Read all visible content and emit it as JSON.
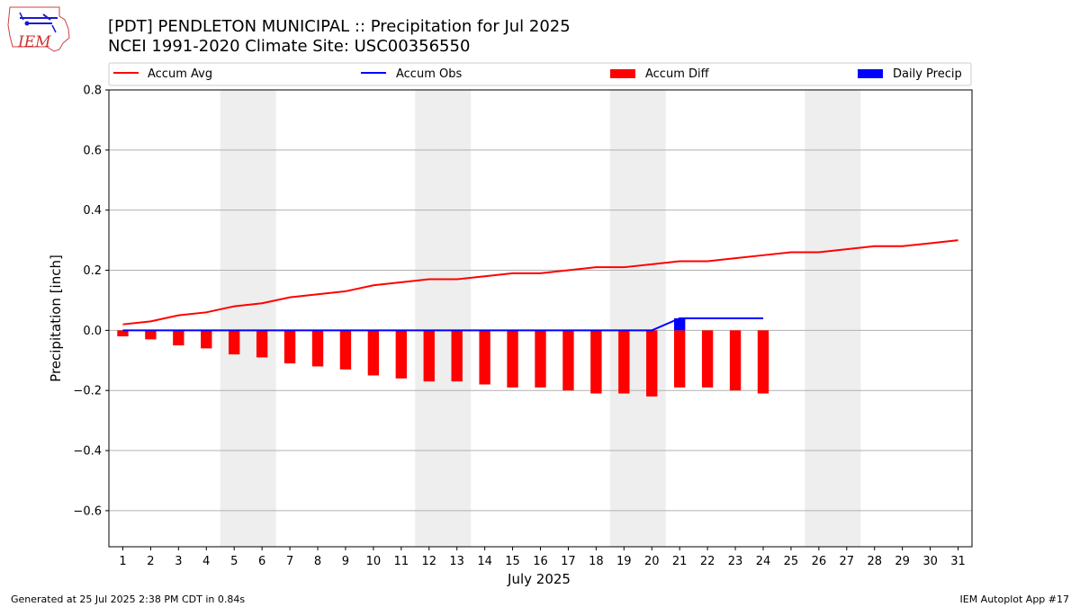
{
  "header": {
    "title_line1": "[PDT] PENDLETON MUNICIPAL :: Precipitation for Jul 2025",
    "title_line2": "NCEI 1991-2020 Climate Site: USC00356550",
    "logo_text": "IEM"
  },
  "footer": {
    "left": "Generated at 25 Jul 2025 2:38 PM CDT in 0.84s",
    "right": "IEM Autoplot App #17"
  },
  "colors": {
    "avg": "#ff0000",
    "obs": "#0000ff",
    "diff": "#ff0000",
    "daily": "#0000ff",
    "weekend": "#eeeeee",
    "grid": "#b0b0b0"
  },
  "chart_data": {
    "type": "bar",
    "xlabel": "July 2025",
    "ylabel": "Precipitation [inch]",
    "ylim": [
      -0.72,
      0.8
    ],
    "yticks": [
      -0.6,
      -0.4,
      -0.2,
      0.0,
      0.2,
      0.4,
      0.6,
      0.8
    ],
    "ytick_labels": [
      "−0.6",
      "−0.4",
      "−0.2",
      "0.0",
      "0.2",
      "0.4",
      "0.6",
      "0.8"
    ],
    "xlim": [
      0.5,
      31.5
    ],
    "days": [
      1,
      2,
      3,
      4,
      5,
      6,
      7,
      8,
      9,
      10,
      11,
      12,
      13,
      14,
      15,
      16,
      17,
      18,
      19,
      20,
      21,
      22,
      23,
      24,
      25,
      26,
      27,
      28,
      29,
      30,
      31
    ],
    "grid": "horizontal",
    "legend_position": "top",
    "shaded_ranges": [
      [
        5,
        6
      ],
      [
        12,
        13
      ],
      [
        19,
        20
      ],
      [
        26,
        27
      ]
    ],
    "series": [
      {
        "name": "Accum Avg",
        "type": "line",
        "days": [
          1,
          2,
          3,
          4,
          5,
          6,
          7,
          8,
          9,
          10,
          11,
          12,
          13,
          14,
          15,
          16,
          17,
          18,
          19,
          20,
          21,
          22,
          23,
          24,
          25,
          26,
          27,
          28,
          29,
          30,
          31
        ],
        "values": [
          0.02,
          0.03,
          0.05,
          0.06,
          0.08,
          0.09,
          0.11,
          0.12,
          0.13,
          0.15,
          0.16,
          0.17,
          0.17,
          0.18,
          0.19,
          0.19,
          0.2,
          0.21,
          0.21,
          0.22,
          0.23,
          0.23,
          0.24,
          0.25,
          0.26,
          0.26,
          0.27,
          0.28,
          0.28,
          0.29,
          0.3
        ]
      },
      {
        "name": "Accum Obs",
        "type": "line",
        "days": [
          1,
          2,
          3,
          4,
          5,
          6,
          7,
          8,
          9,
          10,
          11,
          12,
          13,
          14,
          15,
          16,
          17,
          18,
          19,
          20,
          21,
          22,
          23,
          24
        ],
        "values": [
          0,
          0,
          0,
          0,
          0,
          0,
          0,
          0,
          0,
          0,
          0,
          0,
          0,
          0,
          0,
          0,
          0,
          0,
          0,
          0,
          0.04,
          0.04,
          0.04,
          0.04
        ]
      },
      {
        "name": "Accum Diff",
        "type": "bar",
        "days": [
          1,
          2,
          3,
          4,
          5,
          6,
          7,
          8,
          9,
          10,
          11,
          12,
          13,
          14,
          15,
          16,
          17,
          18,
          19,
          20,
          21,
          22,
          23,
          24
        ],
        "values": [
          -0.02,
          -0.03,
          -0.05,
          -0.06,
          -0.08,
          -0.09,
          -0.11,
          -0.12,
          -0.13,
          -0.15,
          -0.16,
          -0.17,
          -0.17,
          -0.18,
          -0.19,
          -0.19,
          -0.2,
          -0.21,
          -0.21,
          -0.22,
          -0.19,
          -0.19,
          -0.2,
          -0.21
        ]
      },
      {
        "name": "Daily Precip",
        "type": "bar",
        "days": [
          21
        ],
        "values": [
          0.04
        ]
      }
    ]
  }
}
